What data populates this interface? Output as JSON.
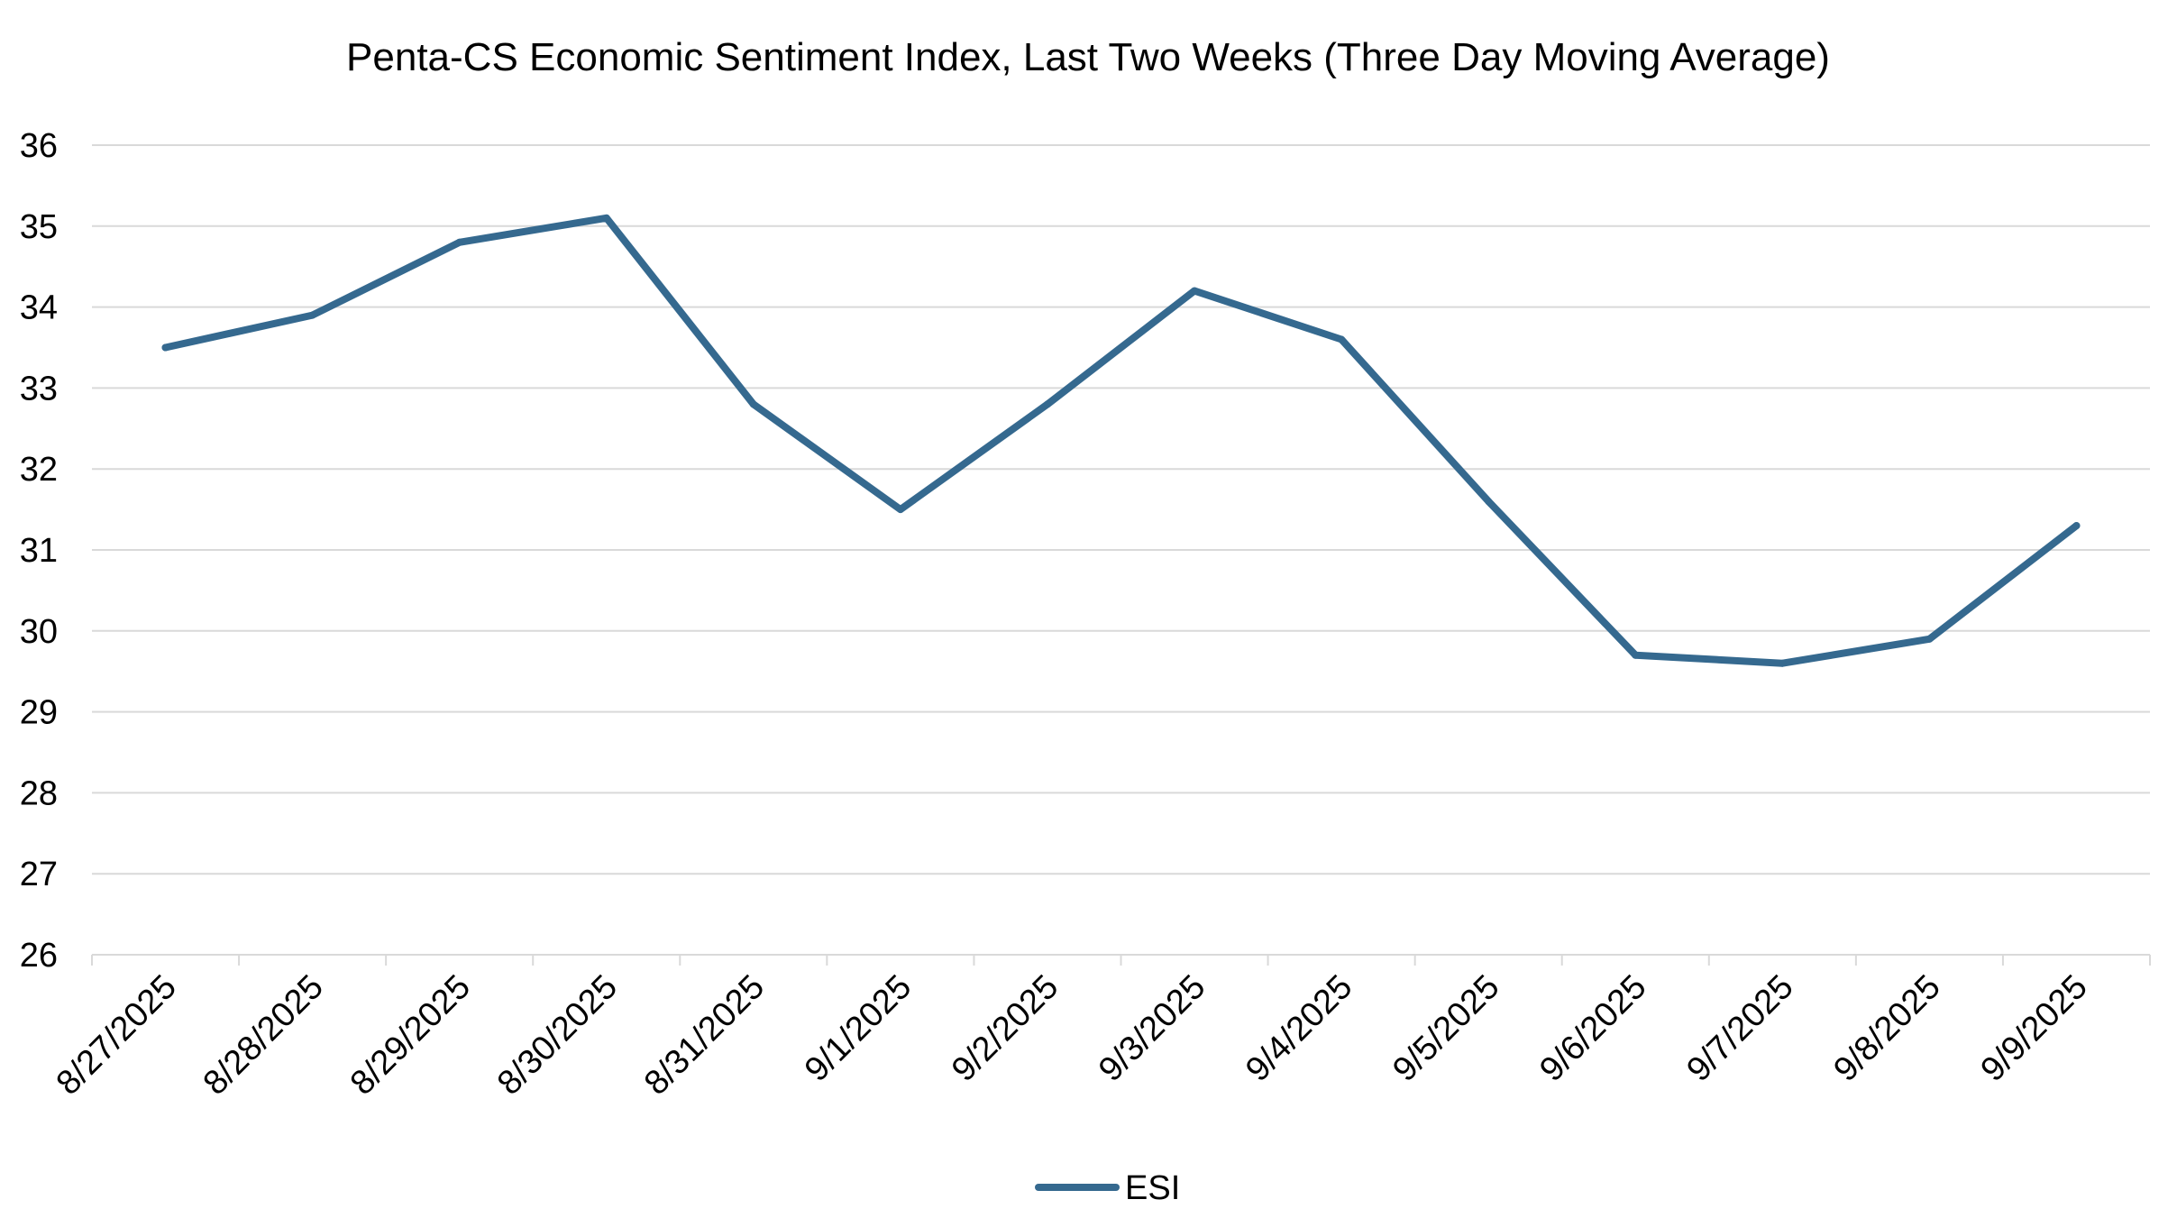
{
  "chart_data": {
    "type": "line",
    "title": "Penta-CS Economic Sentiment Index, Last Two Weeks (Three Day Moving Average)",
    "xlabel": "",
    "ylabel": "",
    "categories": [
      "8/27/2025",
      "8/28/2025",
      "8/29/2025",
      "8/30/2025",
      "8/31/2025",
      "9/1/2025",
      "9/2/2025",
      "9/3/2025",
      "9/4/2025",
      "9/5/2025",
      "9/6/2025",
      "9/7/2025",
      "9/8/2025",
      "9/9/2025"
    ],
    "series": [
      {
        "name": "ESI",
        "color": "#35698f",
        "values": [
          33.5,
          33.9,
          34.8,
          35.1,
          32.8,
          31.5,
          32.8,
          34.2,
          33.6,
          31.6,
          29.7,
          29.6,
          29.9,
          31.3
        ]
      }
    ],
    "ylim": [
      26,
      36
    ],
    "yticks": [
      "26",
      "27",
      "28",
      "29",
      "30",
      "31",
      "32",
      "33",
      "34",
      "35",
      "36"
    ],
    "grid": "horizontal",
    "legend": "bottom-center",
    "gridline_color": "#d9d9d9",
    "axis_color": "#d9d9d9"
  }
}
